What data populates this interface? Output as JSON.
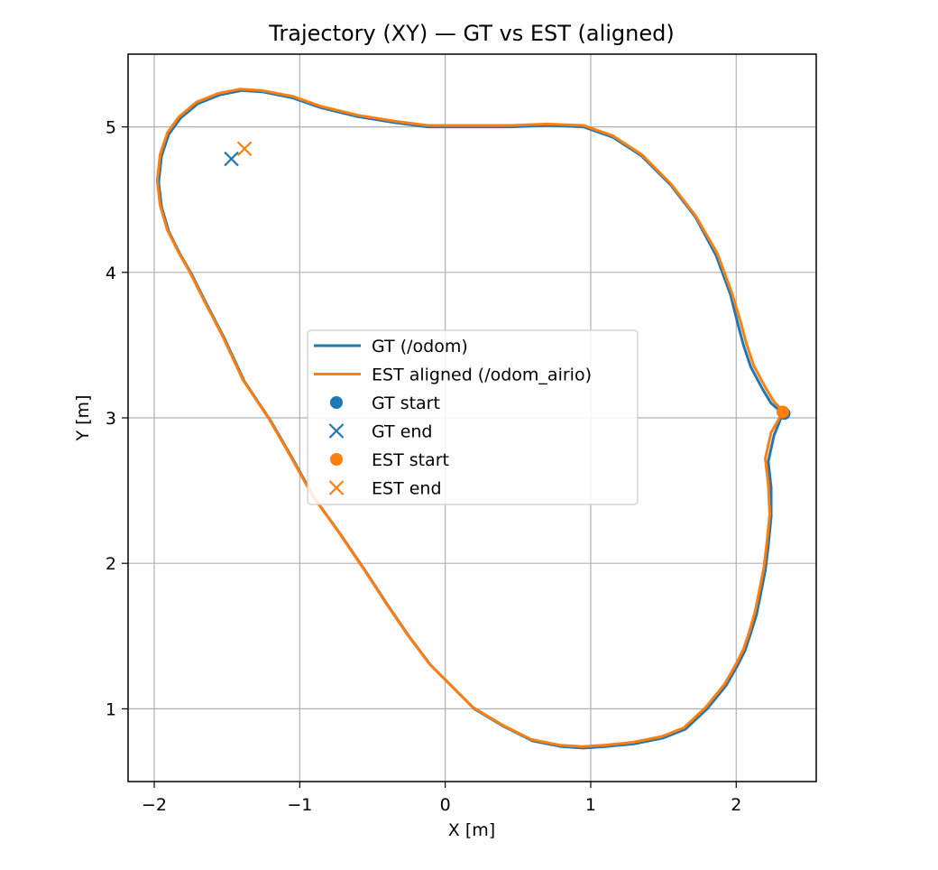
{
  "chart_data": {
    "type": "line",
    "title": "Trajectory (XY) — GT vs EST (aligned)",
    "xlabel": "X [m]",
    "ylabel": "Y [m]",
    "xlim": [
      -2.18,
      2.55
    ],
    "ylim": [
      0.5,
      5.5
    ],
    "xticks": [
      -2,
      -1,
      0,
      1,
      2
    ],
    "yticks": [
      1,
      2,
      3,
      4,
      5
    ],
    "xtick_labels": [
      "−2",
      "−1",
      "0",
      "1",
      "2"
    ],
    "ytick_labels": [
      "1",
      "2",
      "3",
      "4",
      "5"
    ],
    "grid": true,
    "legend_position": "center",
    "series": [
      {
        "name": "GT (/odom)",
        "color": "#1f77b4",
        "x": [
          2.32,
          2.26,
          2.22,
          2.24,
          2.24,
          2.22,
          2.2,
          2.17,
          2.14,
          2.1,
          2.06,
          2.01,
          1.93,
          1.8,
          1.65,
          1.5,
          1.3,
          1.1,
          0.95,
          0.8,
          0.6,
          0.4,
          0.2,
          0.05,
          -0.1,
          -0.25,
          -0.4,
          -0.55,
          -0.72,
          -0.9,
          -1.05,
          -1.2,
          -1.38,
          -1.52,
          -1.65,
          -1.75,
          -1.82,
          -1.9,
          -1.95,
          -1.97,
          -1.95,
          -1.9,
          -1.82,
          -1.7,
          -1.55,
          -1.4,
          -1.25,
          -1.05,
          -0.85,
          -0.6,
          -0.35,
          -0.12,
          0.02,
          0.2,
          0.45,
          0.7,
          0.95,
          1.15,
          1.35,
          1.55,
          1.72,
          1.86,
          1.96,
          2.01,
          2.05,
          2.1,
          2.18,
          2.24,
          2.31
        ],
        "y": [
          3.03,
          2.88,
          2.7,
          2.52,
          2.32,
          2.12,
          1.95,
          1.8,
          1.65,
          1.52,
          1.4,
          1.3,
          1.16,
          1.0,
          0.86,
          0.8,
          0.76,
          0.74,
          0.73,
          0.74,
          0.78,
          0.88,
          1.0,
          1.15,
          1.3,
          1.5,
          1.72,
          1.95,
          2.2,
          2.45,
          2.72,
          2.98,
          3.25,
          3.55,
          3.8,
          4.0,
          4.12,
          4.28,
          4.45,
          4.62,
          4.8,
          4.95,
          5.06,
          5.16,
          5.22,
          5.25,
          5.24,
          5.2,
          5.13,
          5.07,
          5.03,
          5.0,
          5.0,
          5.0,
          5.0,
          5.01,
          5.0,
          4.93,
          4.8,
          4.6,
          4.38,
          4.12,
          3.85,
          3.65,
          3.5,
          3.35,
          3.2,
          3.1,
          3.04
        ]
      },
      {
        "name": "EST aligned (/odom_airio)",
        "color": "#ff7f0e",
        "x": [
          2.32,
          2.24,
          2.2,
          2.22,
          2.23,
          2.21,
          2.19,
          2.16,
          2.13,
          2.09,
          2.05,
          2.0,
          1.92,
          1.79,
          1.64,
          1.49,
          1.29,
          1.09,
          0.94,
          0.79,
          0.59,
          0.39,
          0.19,
          0.04,
          -0.11,
          -0.26,
          -0.41,
          -0.56,
          -0.73,
          -0.91,
          -1.06,
          -1.21,
          -1.39,
          -1.53,
          -1.66,
          -1.76,
          -1.83,
          -1.91,
          -1.96,
          -1.98,
          -1.96,
          -1.91,
          -1.83,
          -1.71,
          -1.56,
          -1.41,
          -1.26,
          -1.05,
          -0.85,
          -0.6,
          -0.35,
          -0.12,
          0.02,
          0.2,
          0.45,
          0.7,
          0.95,
          1.15,
          1.35,
          1.55,
          1.72,
          1.87,
          1.97,
          2.03,
          2.07,
          2.12,
          2.2,
          2.26,
          2.32
        ],
        "y": [
          3.04,
          2.9,
          2.72,
          2.54,
          2.34,
          2.14,
          1.97,
          1.82,
          1.67,
          1.53,
          1.41,
          1.31,
          1.17,
          1.01,
          0.87,
          0.81,
          0.77,
          0.75,
          0.74,
          0.75,
          0.79,
          0.89,
          1.01,
          1.16,
          1.31,
          1.51,
          1.73,
          1.96,
          2.21,
          2.46,
          2.73,
          2.99,
          3.26,
          3.56,
          3.81,
          4.01,
          4.13,
          4.29,
          4.46,
          4.63,
          4.81,
          4.96,
          5.07,
          5.17,
          5.23,
          5.26,
          5.25,
          5.21,
          5.14,
          5.08,
          5.04,
          5.01,
          5.01,
          5.01,
          5.01,
          5.02,
          5.01,
          4.94,
          4.81,
          4.61,
          4.39,
          4.13,
          3.86,
          3.66,
          3.51,
          3.36,
          3.21,
          3.11,
          3.05
        ]
      }
    ],
    "markers": [
      {
        "name": "GT start",
        "x": 2.33,
        "y": 3.03,
        "color": "#1f77b4",
        "symbol": "circle"
      },
      {
        "name": "GT end",
        "x": -1.47,
        "y": 4.78,
        "color": "#1f77b4",
        "symbol": "x"
      },
      {
        "name": "EST start",
        "x": 2.32,
        "y": 3.04,
        "color": "#ff7f0e",
        "symbol": "circle"
      },
      {
        "name": "EST end",
        "x": -1.38,
        "y": 4.85,
        "color": "#ff7f0e",
        "symbol": "x"
      }
    ],
    "legend": [
      {
        "label": "GT (/odom)",
        "kind": "line",
        "color": "#1f77b4"
      },
      {
        "label": "EST aligned (/odom_airio)",
        "kind": "line",
        "color": "#ff7f0e"
      },
      {
        "label": "GT start",
        "kind": "circle",
        "color": "#1f77b4"
      },
      {
        "label": "GT end",
        "kind": "x",
        "color": "#1f77b4"
      },
      {
        "label": "EST start",
        "kind": "circle",
        "color": "#ff7f0e"
      },
      {
        "label": "EST end",
        "kind": "x",
        "color": "#ff7f0e"
      }
    ]
  }
}
